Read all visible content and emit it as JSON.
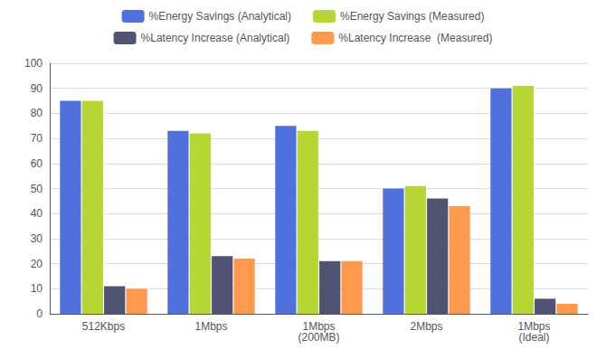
{
  "chart_data": {
    "type": "bar",
    "categories": [
      "512Kbps",
      "1Mbps",
      "1Mbps\n(200MB)",
      "2Mbps",
      "1Mbps\n(Ideal)"
    ],
    "series": [
      {
        "name": "%Energy Savings (Analytical)",
        "values": [
          85,
          73,
          75,
          50,
          90
        ]
      },
      {
        "name": "%Energy Savings (Measured)",
        "values": [
          85,
          72,
          73,
          51,
          91
        ]
      },
      {
        "name": "%Latency Increase (Analytical)",
        "values": [
          11,
          23,
          21,
          46,
          6
        ]
      },
      {
        "name": "%Latency Increase  (Measured)",
        "values": [
          10,
          22,
          21,
          43,
          4
        ]
      }
    ],
    "ylim": [
      0,
      100
    ],
    "yticks": [
      0,
      10,
      20,
      30,
      40,
      50,
      60,
      70,
      80,
      90,
      100
    ],
    "grid": true,
    "legend": "top"
  }
}
